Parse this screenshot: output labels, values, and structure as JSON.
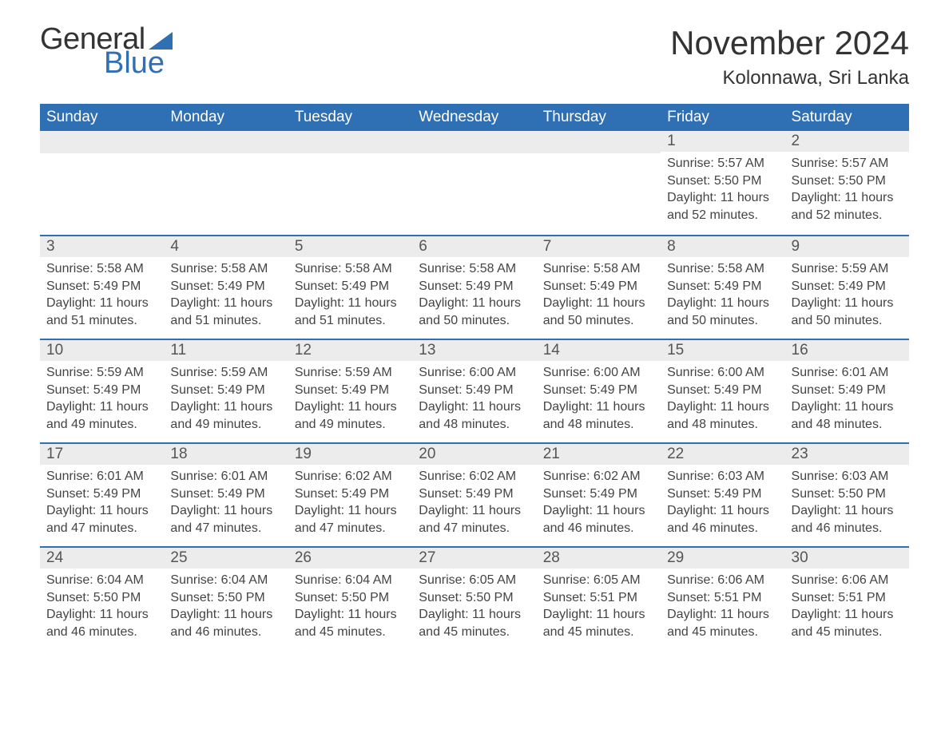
{
  "brand": {
    "word1": "General",
    "word2": "Blue",
    "flag_color": "#2f6fb3"
  },
  "title": "November 2024",
  "location": "Kolonnawa, Sri Lanka",
  "colors": {
    "header_bg": "#2f6fb3",
    "header_text": "#ffffff",
    "daynum_bg": "#ececec",
    "daynum_border": "#2f6fb3",
    "body_text": "#444444",
    "page_bg": "#ffffff"
  },
  "day_labels": [
    "Sunday",
    "Monday",
    "Tuesday",
    "Wednesday",
    "Thursday",
    "Friday",
    "Saturday"
  ],
  "labels": {
    "sunrise": "Sunrise: ",
    "sunset": "Sunset: ",
    "daylight": "Daylight: "
  },
  "weeks": [
    [
      null,
      null,
      null,
      null,
      null,
      {
        "n": "1",
        "sunrise": "5:57 AM",
        "sunset": "5:50 PM",
        "daylight": "11 hours and 52 minutes."
      },
      {
        "n": "2",
        "sunrise": "5:57 AM",
        "sunset": "5:50 PM",
        "daylight": "11 hours and 52 minutes."
      }
    ],
    [
      {
        "n": "3",
        "sunrise": "5:58 AM",
        "sunset": "5:49 PM",
        "daylight": "11 hours and 51 minutes."
      },
      {
        "n": "4",
        "sunrise": "5:58 AM",
        "sunset": "5:49 PM",
        "daylight": "11 hours and 51 minutes."
      },
      {
        "n": "5",
        "sunrise": "5:58 AM",
        "sunset": "5:49 PM",
        "daylight": "11 hours and 51 minutes."
      },
      {
        "n": "6",
        "sunrise": "5:58 AM",
        "sunset": "5:49 PM",
        "daylight": "11 hours and 50 minutes."
      },
      {
        "n": "7",
        "sunrise": "5:58 AM",
        "sunset": "5:49 PM",
        "daylight": "11 hours and 50 minutes."
      },
      {
        "n": "8",
        "sunrise": "5:58 AM",
        "sunset": "5:49 PM",
        "daylight": "11 hours and 50 minutes."
      },
      {
        "n": "9",
        "sunrise": "5:59 AM",
        "sunset": "5:49 PM",
        "daylight": "11 hours and 50 minutes."
      }
    ],
    [
      {
        "n": "10",
        "sunrise": "5:59 AM",
        "sunset": "5:49 PM",
        "daylight": "11 hours and 49 minutes."
      },
      {
        "n": "11",
        "sunrise": "5:59 AM",
        "sunset": "5:49 PM",
        "daylight": "11 hours and 49 minutes."
      },
      {
        "n": "12",
        "sunrise": "5:59 AM",
        "sunset": "5:49 PM",
        "daylight": "11 hours and 49 minutes."
      },
      {
        "n": "13",
        "sunrise": "6:00 AM",
        "sunset": "5:49 PM",
        "daylight": "11 hours and 48 minutes."
      },
      {
        "n": "14",
        "sunrise": "6:00 AM",
        "sunset": "5:49 PM",
        "daylight": "11 hours and 48 minutes."
      },
      {
        "n": "15",
        "sunrise": "6:00 AM",
        "sunset": "5:49 PM",
        "daylight": "11 hours and 48 minutes."
      },
      {
        "n": "16",
        "sunrise": "6:01 AM",
        "sunset": "5:49 PM",
        "daylight": "11 hours and 48 minutes."
      }
    ],
    [
      {
        "n": "17",
        "sunrise": "6:01 AM",
        "sunset": "5:49 PM",
        "daylight": "11 hours and 47 minutes."
      },
      {
        "n": "18",
        "sunrise": "6:01 AM",
        "sunset": "5:49 PM",
        "daylight": "11 hours and 47 minutes."
      },
      {
        "n": "19",
        "sunrise": "6:02 AM",
        "sunset": "5:49 PM",
        "daylight": "11 hours and 47 minutes."
      },
      {
        "n": "20",
        "sunrise": "6:02 AM",
        "sunset": "5:49 PM",
        "daylight": "11 hours and 47 minutes."
      },
      {
        "n": "21",
        "sunrise": "6:02 AM",
        "sunset": "5:49 PM",
        "daylight": "11 hours and 46 minutes."
      },
      {
        "n": "22",
        "sunrise": "6:03 AM",
        "sunset": "5:49 PM",
        "daylight": "11 hours and 46 minutes."
      },
      {
        "n": "23",
        "sunrise": "6:03 AM",
        "sunset": "5:50 PM",
        "daylight": "11 hours and 46 minutes."
      }
    ],
    [
      {
        "n": "24",
        "sunrise": "6:04 AM",
        "sunset": "5:50 PM",
        "daylight": "11 hours and 46 minutes."
      },
      {
        "n": "25",
        "sunrise": "6:04 AM",
        "sunset": "5:50 PM",
        "daylight": "11 hours and 46 minutes."
      },
      {
        "n": "26",
        "sunrise": "6:04 AM",
        "sunset": "5:50 PM",
        "daylight": "11 hours and 45 minutes."
      },
      {
        "n": "27",
        "sunrise": "6:05 AM",
        "sunset": "5:50 PM",
        "daylight": "11 hours and 45 minutes."
      },
      {
        "n": "28",
        "sunrise": "6:05 AM",
        "sunset": "5:51 PM",
        "daylight": "11 hours and 45 minutes."
      },
      {
        "n": "29",
        "sunrise": "6:06 AM",
        "sunset": "5:51 PM",
        "daylight": "11 hours and 45 minutes."
      },
      {
        "n": "30",
        "sunrise": "6:06 AM",
        "sunset": "5:51 PM",
        "daylight": "11 hours and 45 minutes."
      }
    ]
  ]
}
